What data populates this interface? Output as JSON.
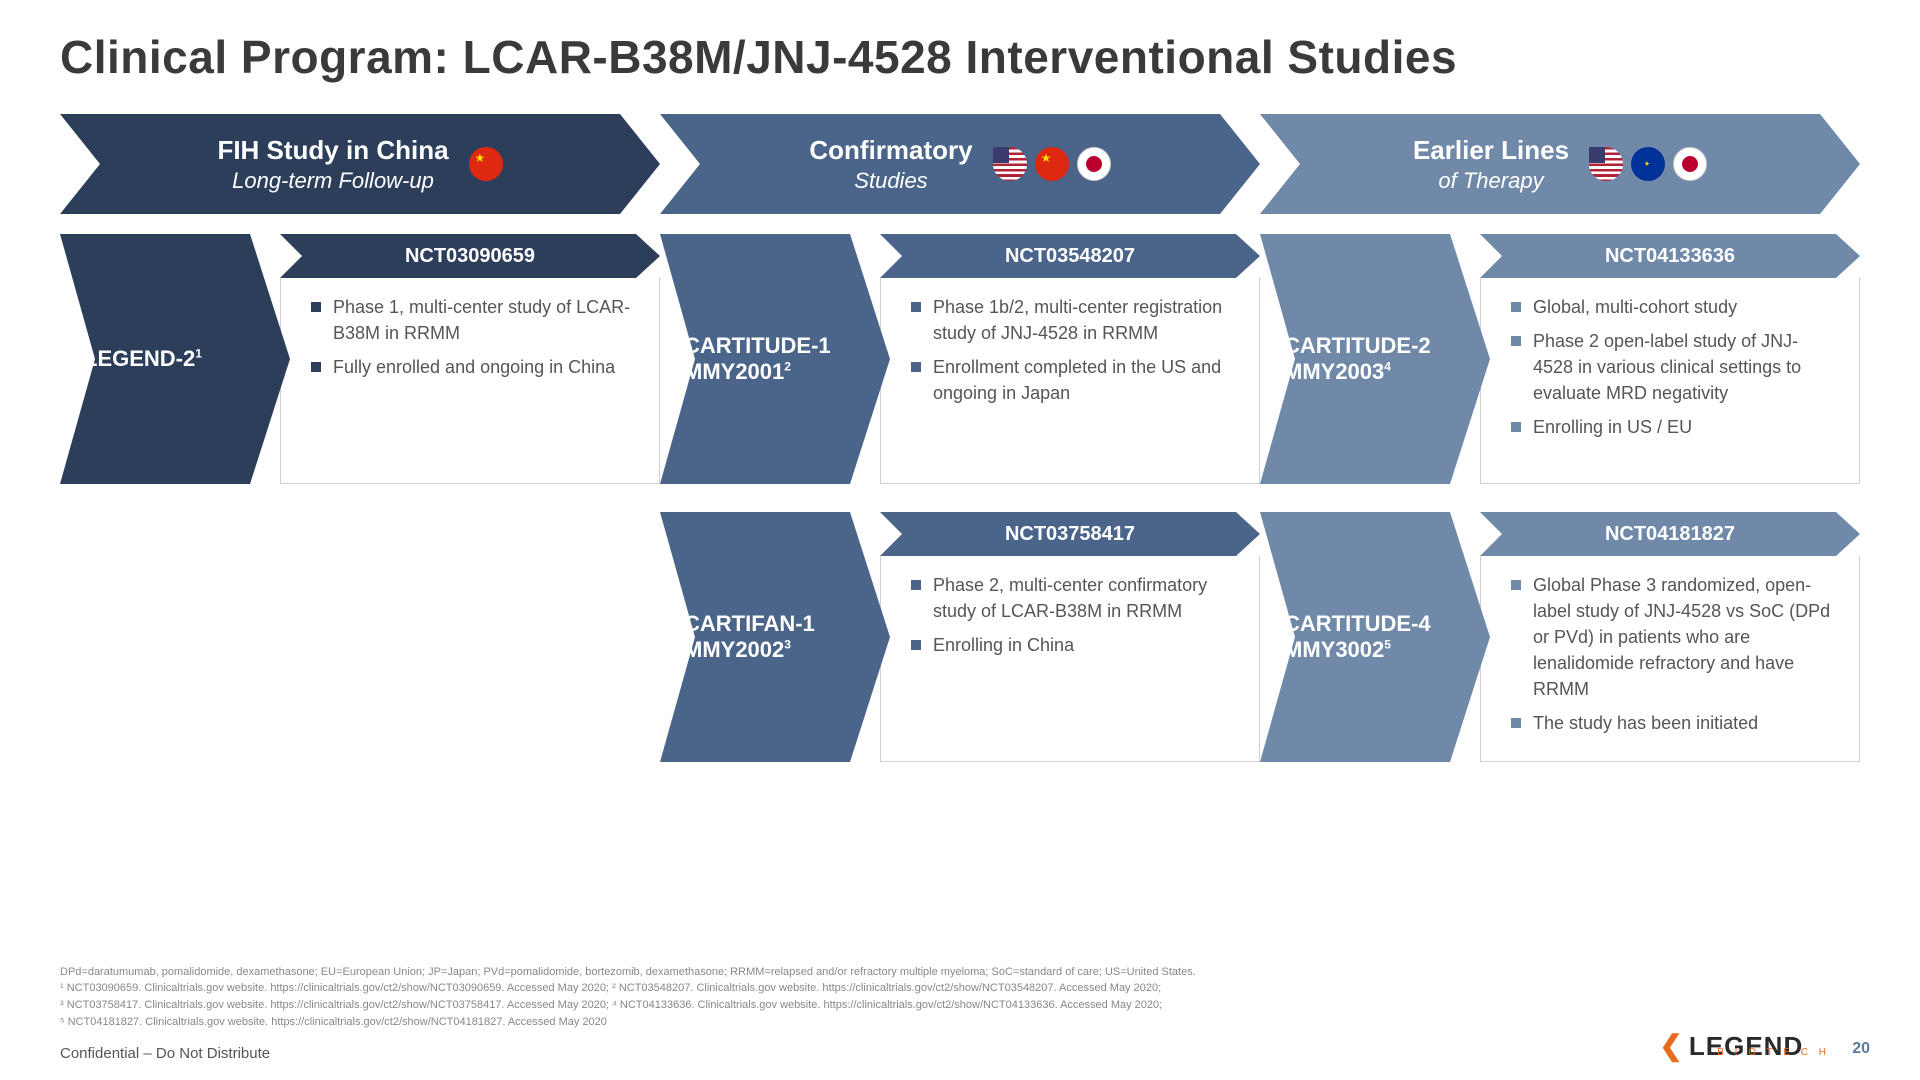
{
  "title": "Clinical Program: LCAR-B38M/JNJ-4528 Interventional Studies",
  "colors": {
    "col0": "#2c3e5a",
    "col1": "#4a6589",
    "col2": "#7089a8",
    "text_dark": "#3a3a3a",
    "body_text": "#555555",
    "footnote": "#888888"
  },
  "top_headers": [
    {
      "line1": "FIH Study in China",
      "line2": "Long-term Follow-up",
      "flags": [
        "china"
      ],
      "color": "#2c3e5a"
    },
    {
      "line1": "Confirmatory",
      "line2": "Studies",
      "flags": [
        "us",
        "china",
        "japan"
      ],
      "color": "#4a6589"
    },
    {
      "line1": "Earlier Lines",
      "line2": "of Therapy",
      "flags": [
        "us",
        "eu",
        "japan"
      ],
      "color": "#7089a8"
    }
  ],
  "rows": [
    [
      {
        "label_html": "LEGEND-2<sup>1</sup>",
        "color": "#2c3e5a",
        "nct": "NCT03090659",
        "bullets": [
          "Phase 1, multi-center study of LCAR-B38M in RRMM",
          "Fully enrolled and ongoing in China"
        ]
      },
      {
        "label_html": "CARTITUDE-1<br>MMY2001<sup>2</sup>",
        "color": "#4a6589",
        "nct": "NCT03548207",
        "bullets": [
          "Phase 1b/2, multi-center registration study of JNJ-4528 in RRMM",
          "Enrollment completed in the US and ongoing in Japan"
        ]
      },
      {
        "label_html": "CARTITUDE-2<br>MMY2003<sup>4</sup>",
        "color": "#7089a8",
        "nct": "NCT04133636",
        "bullets": [
          "Global, multi-cohort study",
          "Phase 2 open-label study of JNJ-4528 in various clinical settings to evaluate MRD negativity",
          "Enrolling in US / EU"
        ]
      }
    ],
    [
      null,
      {
        "label_html": "CARTIFAN-1<br>MMY2002<sup>3</sup>",
        "color": "#4a6589",
        "nct": "NCT03758417",
        "bullets": [
          "Phase 2, multi-center confirmatory study of LCAR-B38M in RRMM",
          "Enrolling in China"
        ]
      },
      {
        "label_html": "CARTITUDE-4<br>MMY3002<sup>5</sup>",
        "color": "#7089a8",
        "nct": "NCT04181827",
        "bullets": [
          "Global Phase 3 randomized, open-label study of JNJ-4528 vs SoC (DPd or PVd) in patients who are lenalidomide refractory and have RRMM",
          "The study has been initiated"
        ]
      }
    ]
  ],
  "footnotes": [
    "DPd=daratumumab, pomalidomide, dexamethasone; EU=European Union; JP=Japan; PVd=pomalidomide, bortezomib, dexamethasone; RRMM=relapsed and/or refractory multiple myeloma; SoC=standard of care; US=United States.",
    "¹ NCT03090659. Clinicaltrials.gov website. https://clinicaltrials.gov/ct2/show/NCT03090659. Accessed May 2020; ² NCT03548207. Clinicaltrials.gov website. https://clinicaltrials.gov/ct2/show/NCT03548207. Accessed May 2020;",
    "³ NCT03758417. Clinicaltrials.gov website. https://clinicaltrials.gov/ct2/show/NCT03758417. Accessed May 2020; ⁴ NCT04133636. Clinicaltrials.gov website. https://clinicaltrials.gov/ct2/show/NCT04133636. Accessed May 2020;",
    "⁵ NCT04181827. Clinicaltrials.gov website. https://clinicaltrials.gov/ct2/show/NCT04181827. Accessed May 2020"
  ],
  "confidential": "Confidential – Do Not Distribute",
  "logo": {
    "name": "LEGEND",
    "sub": "B I O T E C H"
  },
  "page_number": "20"
}
